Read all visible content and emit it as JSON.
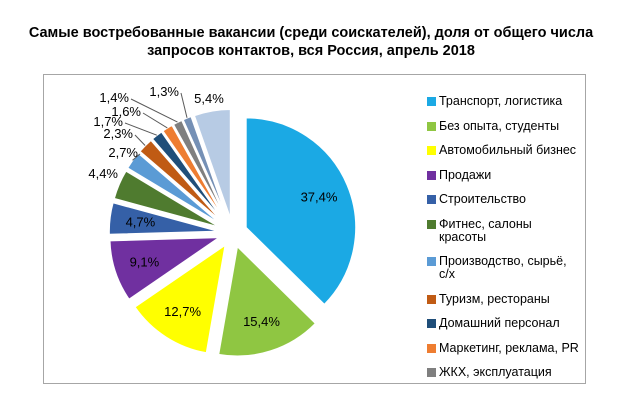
{
  "chart_data": {
    "type": "pie",
    "title": "Самые востребованные вакансии (среди соискателей), доля от общего числа запросов контактов, вся Россия, апрель 2018",
    "unit": "%",
    "decimal_separator": ",",
    "exploded": true,
    "start_angle_deg": 0,
    "direction": "clockwise",
    "legend_position": "right",
    "slices": [
      {
        "label": "Транспорт, логистика",
        "value": 37.4,
        "display": "37,4%",
        "color": "#1BA9E4",
        "in_legend": true
      },
      {
        "label": "Без опыта, студенты",
        "value": 15.4,
        "display": "15,4%",
        "color": "#8FC642",
        "in_legend": true
      },
      {
        "label": "Автомобильный бизнес",
        "value": 12.7,
        "display": "12,7%",
        "color": "#FFFF00",
        "in_legend": true
      },
      {
        "label": "Продажи",
        "value": 9.1,
        "display": "9,1%",
        "color": "#7030A0",
        "in_legend": true
      },
      {
        "label": "Строительство",
        "value": 4.7,
        "display": "4,7%",
        "color": "#3560A7",
        "in_legend": true
      },
      {
        "label": "Фитнес, салоны красоты",
        "value": 4.4,
        "display": "4,4%",
        "color": "#4F7B2F",
        "in_legend": true
      },
      {
        "label": "Производство, сырьё, с/х",
        "value": 2.7,
        "display": "2,7%",
        "color": "#5B9BD5",
        "in_legend": true
      },
      {
        "label": "Туризм, рестораны",
        "value": 2.3,
        "display": "2,3%",
        "color": "#C05B14",
        "in_legend": true
      },
      {
        "label": "Домашний персонал",
        "value": 1.7,
        "display": "1,7%",
        "color": "#1F4E79",
        "in_legend": true
      },
      {
        "label": "Маркетинг, реклама, PR",
        "value": 1.6,
        "display": "1,6%",
        "color": "#EE7D31",
        "in_legend": true
      },
      {
        "label": "ЖКХ, эксплуатация",
        "value": 1.4,
        "display": "1,4%",
        "color": "#7F7F7F",
        "in_legend": true
      },
      {
        "label": "",
        "value": 1.3,
        "display": "1,3%",
        "color": "#7590B5",
        "in_legend": false
      },
      {
        "label": "",
        "value": 5.4,
        "display": "5,4%",
        "color": "#B7CBE4",
        "in_legend": false
      }
    ]
  }
}
